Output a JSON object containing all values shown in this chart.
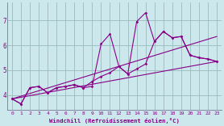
{
  "xlabel": "Windchill (Refroidissement éolien,°C)",
  "bg_color": "#cce8ec",
  "grid_color": "#99bbbb",
  "line_color": "#880088",
  "xlim": [
    -0.5,
    23.5
  ],
  "ylim": [
    3.4,
    7.7
  ],
  "yticks": [
    4,
    5,
    6,
    7
  ],
  "xticks": [
    0,
    1,
    2,
    3,
    4,
    5,
    6,
    7,
    8,
    9,
    10,
    11,
    12,
    13,
    14,
    15,
    16,
    17,
    18,
    19,
    20,
    21,
    22,
    23
  ],
  "series": [
    {
      "x": [
        0,
        1,
        2,
        3,
        4,
        5,
        6,
        7,
        8,
        9,
        10,
        11,
        12,
        13,
        14,
        15,
        16,
        17,
        18,
        19,
        20,
        21,
        22,
        23
      ],
      "y": [
        3.85,
        3.65,
        4.3,
        4.35,
        4.1,
        4.3,
        4.35,
        4.42,
        4.3,
        4.35,
        6.05,
        6.45,
        5.15,
        4.85,
        6.95,
        7.3,
        6.15,
        6.55,
        6.3,
        6.35,
        5.6,
        5.5,
        5.45,
        5.35
      ],
      "marker": true
    },
    {
      "x": [
        0,
        1,
        2,
        3,
        4,
        5,
        6,
        7,
        8,
        9,
        10,
        11,
        12,
        13,
        14,
        15,
        16,
        17,
        18,
        19,
        20,
        21,
        22,
        23
      ],
      "y": [
        3.85,
        3.65,
        4.3,
        4.35,
        4.1,
        4.3,
        4.35,
        4.42,
        4.3,
        4.55,
        4.75,
        4.9,
        5.15,
        4.85,
        5.05,
        5.25,
        6.15,
        6.55,
        6.3,
        6.35,
        5.6,
        5.5,
        5.45,
        5.35
      ],
      "marker": true
    },
    {
      "x": [
        0,
        23
      ],
      "y": [
        3.85,
        6.35
      ],
      "marker": false
    },
    {
      "x": [
        0,
        23
      ],
      "y": [
        3.85,
        5.35
      ],
      "marker": false
    }
  ]
}
